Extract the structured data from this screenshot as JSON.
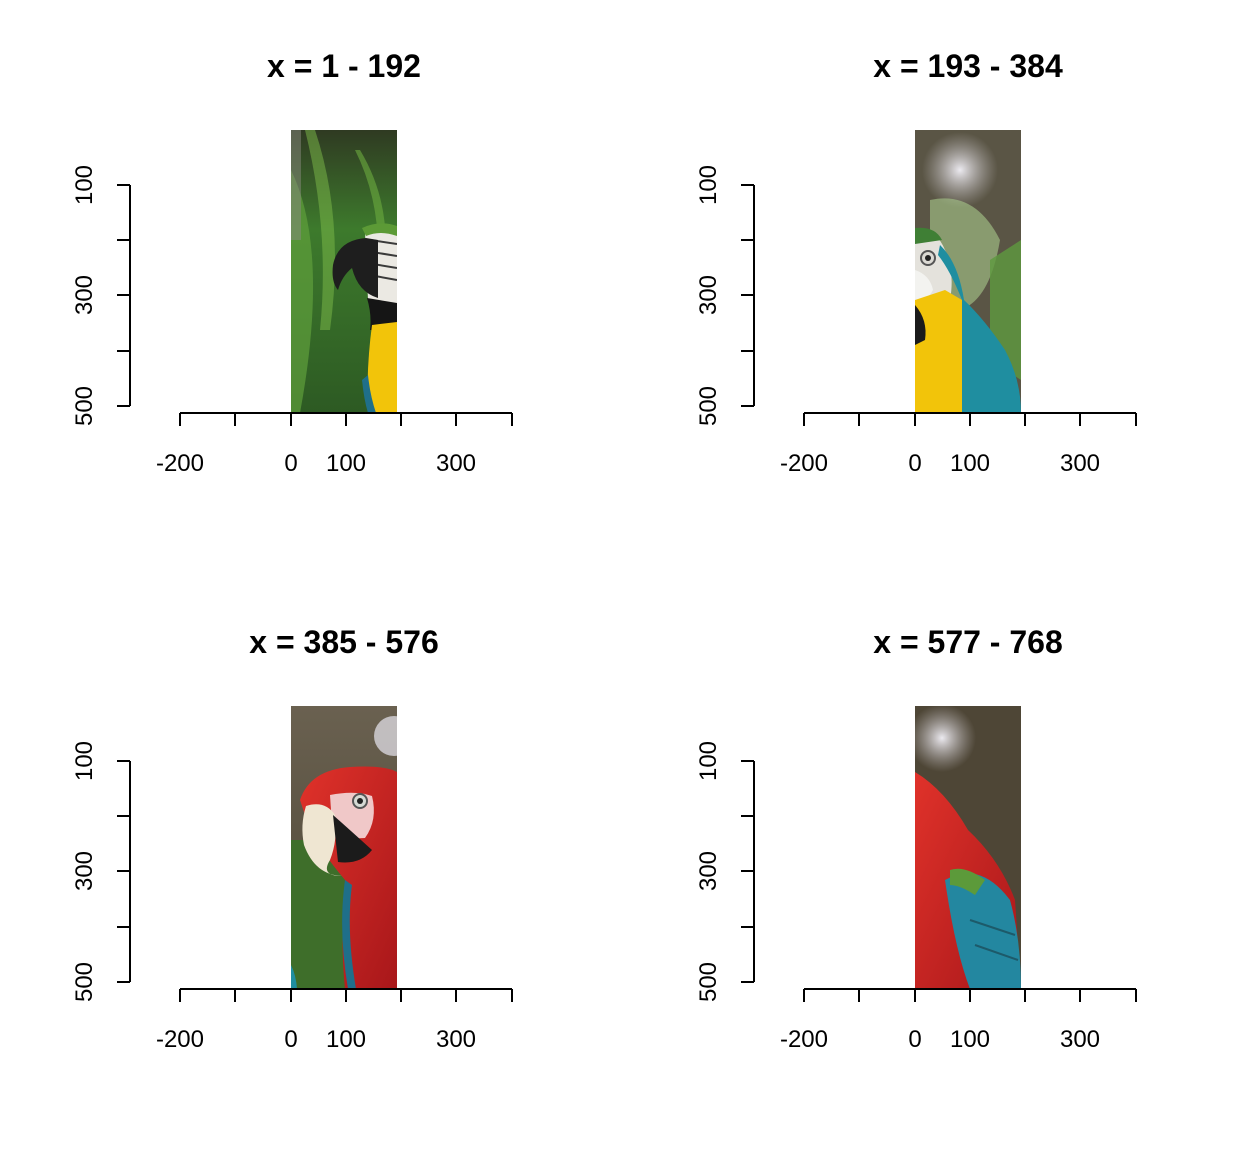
{
  "chart_data": [
    {
      "type": "image",
      "title": "x = 1 - 192",
      "x_range": [
        1,
        192
      ],
      "xlim": [
        -200,
        400
      ],
      "ylim": [
        500,
        1
      ],
      "image_extent": {
        "x": [
          0,
          192
        ],
        "y": [
          0,
          512
        ]
      },
      "x_ticks": [
        -200,
        -100,
        0,
        100,
        200,
        300,
        400
      ],
      "x_tick_labels": [
        "-200",
        "",
        "0",
        "100",
        "",
        "300",
        ""
      ],
      "y_ticks": [
        100,
        200,
        300,
        400,
        500
      ],
      "y_tick_labels": [
        "100",
        "",
        "300",
        "",
        "500"
      ],
      "content": "macaw-left"
    },
    {
      "type": "image",
      "title": "x = 193 - 384",
      "x_range": [
        193,
        384
      ],
      "xlim": [
        -200,
        400
      ],
      "ylim": [
        500,
        1
      ],
      "image_extent": {
        "x": [
          0,
          192
        ],
        "y": [
          0,
          512
        ]
      },
      "x_ticks": [
        -200,
        -100,
        0,
        100,
        200,
        300,
        400
      ],
      "x_tick_labels": [
        "-200",
        "",
        "0",
        "100",
        "",
        "300",
        ""
      ],
      "y_ticks": [
        100,
        200,
        300,
        400,
        500
      ],
      "y_tick_labels": [
        "100",
        "",
        "300",
        "",
        "500"
      ],
      "content": "macaw-center-left"
    },
    {
      "type": "image",
      "title": "x = 385 - 576",
      "x_range": [
        385,
        576
      ],
      "xlim": [
        -200,
        400
      ],
      "ylim": [
        500,
        1
      ],
      "image_extent": {
        "x": [
          0,
          192
        ],
        "y": [
          0,
          512
        ]
      },
      "x_ticks": [
        -200,
        -100,
        0,
        100,
        200,
        300,
        400
      ],
      "x_tick_labels": [
        "-200",
        "",
        "0",
        "100",
        "",
        "300",
        ""
      ],
      "y_ticks": [
        100,
        200,
        300,
        400,
        500
      ],
      "y_tick_labels": [
        "100",
        "",
        "300",
        "",
        "500"
      ],
      "content": "macaw-center-right"
    },
    {
      "type": "image",
      "title": "x = 577 - 768",
      "x_range": [
        577,
        768
      ],
      "xlim": [
        -200,
        400
      ],
      "ylim": [
        500,
        1
      ],
      "image_extent": {
        "x": [
          0,
          192
        ],
        "y": [
          0,
          512
        ]
      },
      "x_ticks": [
        -200,
        -100,
        0,
        100,
        200,
        300,
        400
      ],
      "x_tick_labels": [
        "-200",
        "",
        "0",
        "100",
        "",
        "300",
        ""
      ],
      "y_ticks": [
        100,
        200,
        300,
        400,
        500
      ],
      "y_tick_labels": [
        "100",
        "",
        "300",
        "",
        "500"
      ],
      "content": "macaw-right"
    }
  ],
  "colors": {
    "foliage_green": "#3f7a2a",
    "dark_green": "#2b4a1f",
    "macaw_yellow": "#f2c40a",
    "macaw_teal": "#1f8ea0",
    "macaw_red": "#c8201f",
    "beak_dark": "#1b1b1b",
    "face_white": "#ecebe6",
    "bg_brown": "#5b5240",
    "bg_light": "#d8d4d6"
  }
}
